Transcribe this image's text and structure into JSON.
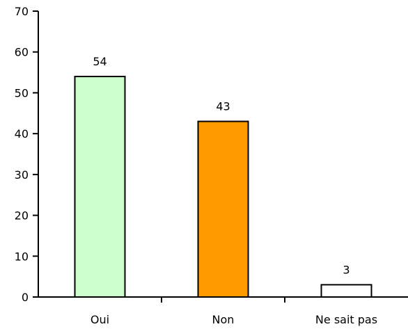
{
  "chart_data": {
    "type": "bar",
    "categories": [
      "Oui",
      "Non",
      "Ne sait pas"
    ],
    "values": [
      54,
      43,
      3
    ],
    "colors": [
      "#ccffcc",
      "#ff9900",
      "#ffffff"
    ],
    "ylim": [
      0,
      70
    ],
    "yticks": [
      0,
      10,
      20,
      30,
      40,
      50,
      60,
      70
    ],
    "ytick_labels": [
      "0",
      "10",
      "20",
      "30",
      "40",
      "50",
      "60",
      "70"
    ],
    "data_labels": [
      "54",
      "43",
      "3"
    ],
    "title": "",
    "xlabel": "",
    "ylabel": "",
    "grid": false,
    "legend": "none"
  }
}
